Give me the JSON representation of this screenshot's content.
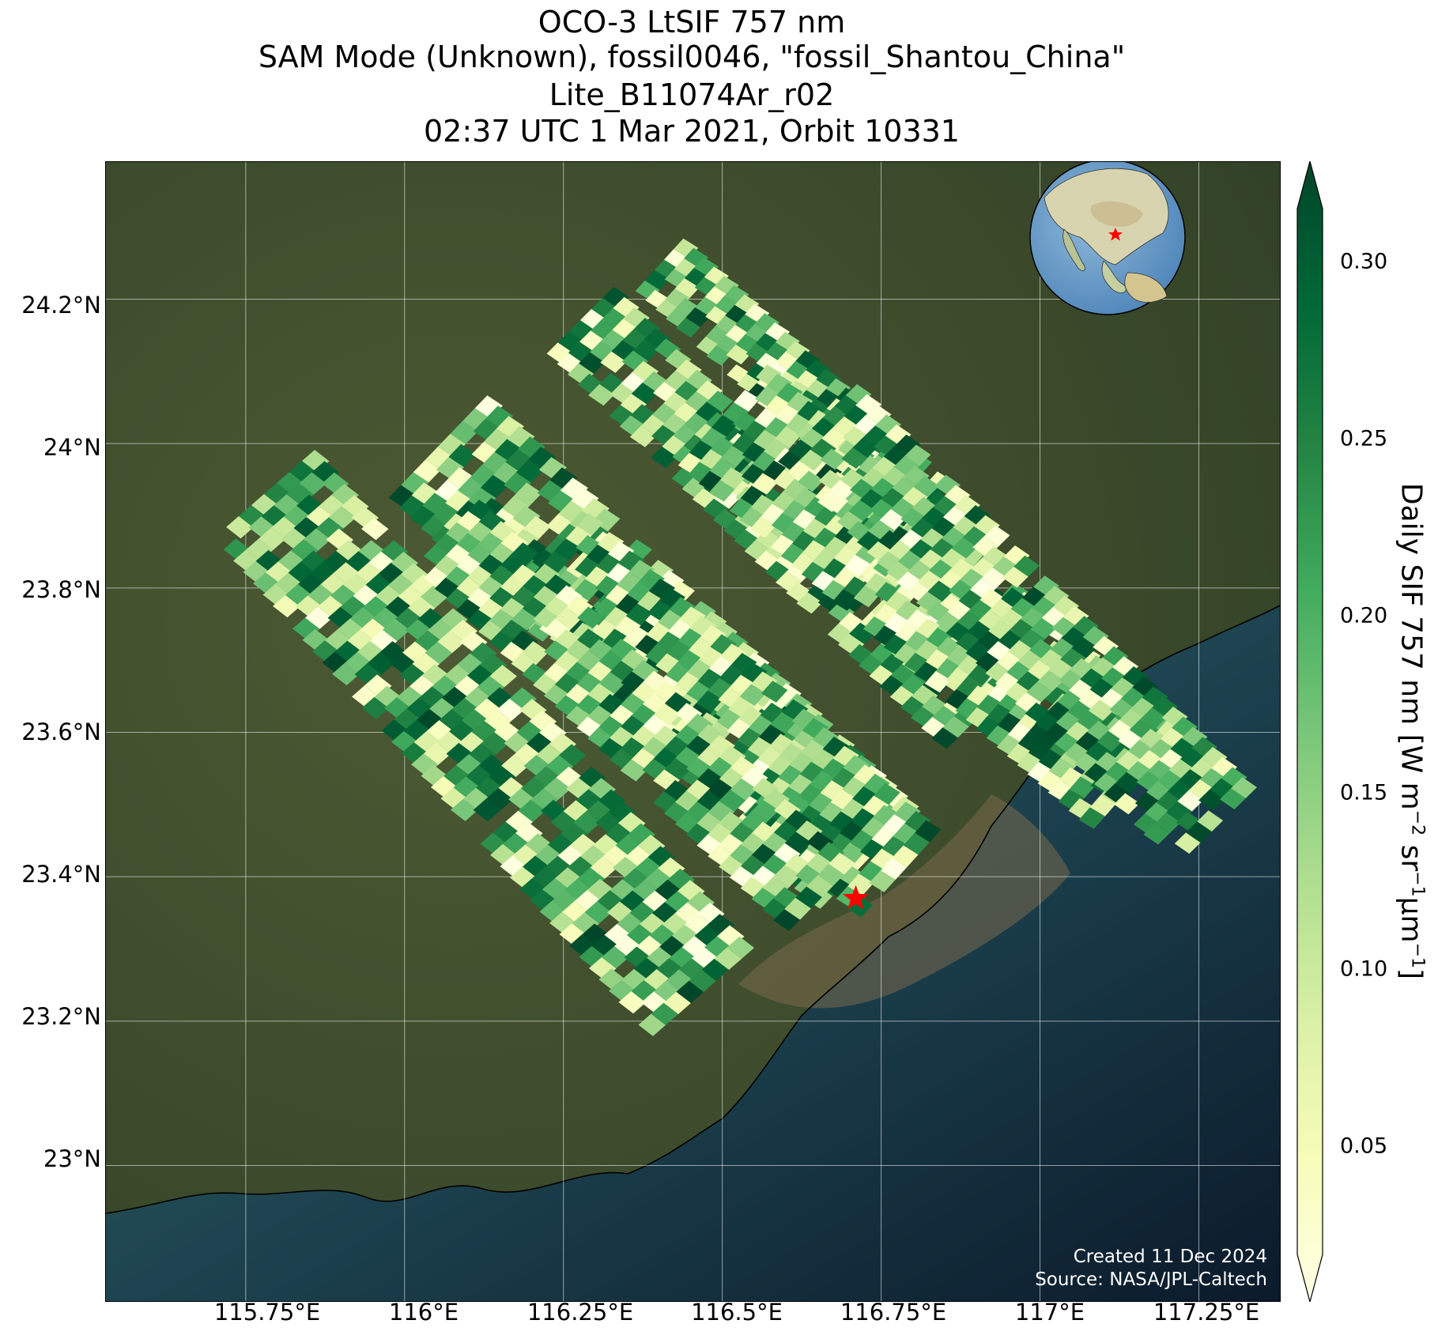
{
  "title": {
    "line1": "OCO-3 LtSIF 757 nm",
    "line2": "SAM Mode (Unknown), fossil0046, \"fossil_Shantou_China\"",
    "line3": "Lite_B11074Ar_r02",
    "line4": "02:37 UTC 1 Mar 2021, Orbit 10331"
  },
  "map": {
    "lon_range": [
      115.53,
      117.38
    ],
    "lat_range": [
      22.81,
      24.39
    ],
    "lat_ticks": [
      "24.2°N",
      "24°N",
      "23.8°N",
      "23.6°N",
      "23.4°N",
      "23.2°N",
      "23°N"
    ],
    "lon_ticks": [
      "115.75°E",
      "116°E",
      "116.25°E",
      "116.5°E",
      "116.75°E",
      "117°E",
      "117.25°E"
    ],
    "target_marker": {
      "name": "fossil_Shantou_China",
      "lon": 116.71,
      "lat": 23.37,
      "color": "#ff0000"
    }
  },
  "credit": {
    "created": "Created 11 Dec 2024",
    "source": "Source: NASA/JPL-Caltech"
  },
  "colorbar": {
    "label_main": "Daily SIF 757 nm [W m",
    "ticks": [
      "0.30",
      "0.25",
      "0.20",
      "0.15",
      "0.10",
      "0.05"
    ],
    "range": [
      0.02,
      0.315
    ],
    "colormap": [
      "#ffffe5",
      "#f7fcb9",
      "#d9f0a3",
      "#addd8e",
      "#78c679",
      "#41ab5d",
      "#238443",
      "#006837",
      "#004529"
    ]
  }
}
